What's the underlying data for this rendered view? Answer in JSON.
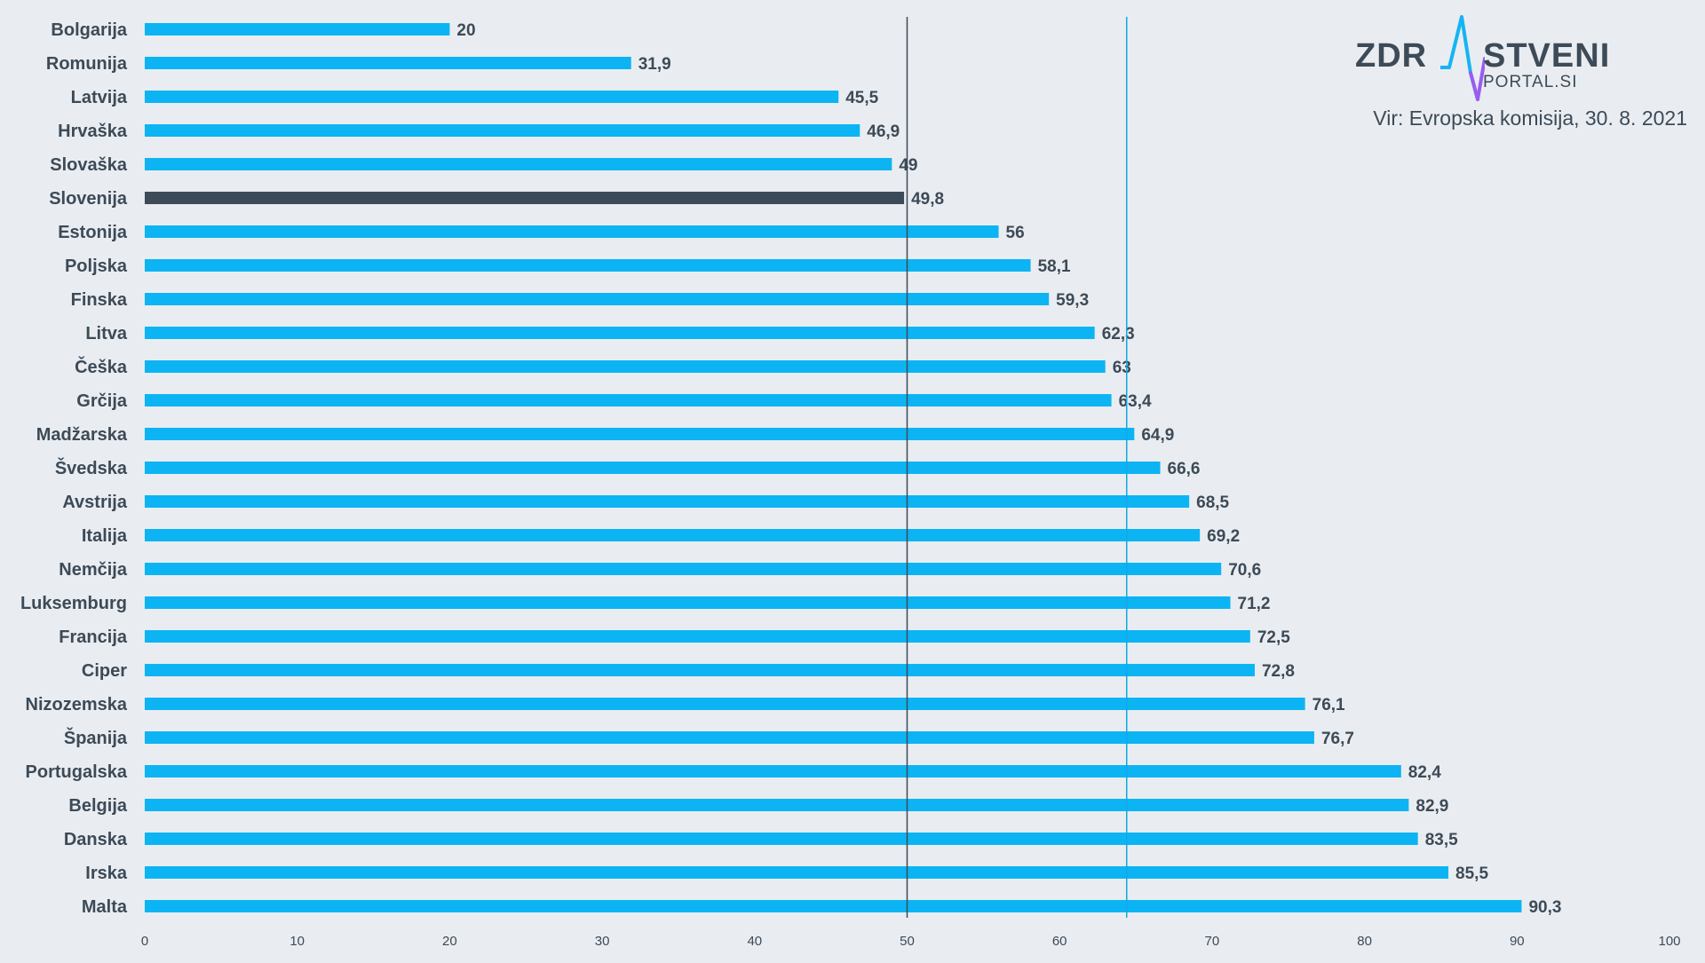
{
  "logo": {
    "part_left": "ZDR",
    "part_right": "STVENI",
    "subtitle": "PORTAL.SI",
    "colors": {
      "text": "#3d4a57",
      "pulse_blue": "#15b4f3",
      "pulse_purple": "#9b5cf0"
    },
    "icon": "heartbeat-pulse-icon"
  },
  "source_note": "Vir: Evropska komisija, 30. 8. 2021",
  "chart_data": {
    "type": "bar",
    "orientation": "horizontal",
    "title": "",
    "xlabel": "",
    "ylabel": "",
    "xlim": [
      0,
      100
    ],
    "x_ticks": [
      "0",
      "10",
      "20",
      "30",
      "40",
      "50",
      "60",
      "70",
      "80",
      "90",
      "100"
    ],
    "x_tick_values": [
      0,
      10,
      20,
      30,
      40,
      50,
      60,
      70,
      80,
      90,
      100
    ],
    "grid": false,
    "reference_lines": [
      {
        "value": 50,
        "color": "#3d4a57"
      },
      {
        "value": 64.4,
        "color": "#0fa9e6"
      }
    ],
    "colors": {
      "default_bar": "#0cb4f3",
      "highlight_bar": "#3d4a57",
      "text": "#3d4a57"
    },
    "highlight_category": "Slovenija",
    "categories": [
      "Bolgarija",
      "Romunija",
      "Latvija",
      "Hrvaška",
      "Slovaška",
      "Slovenija",
      "Estonija",
      "Poljska",
      "Finska",
      "Litva",
      "Češka",
      "Grčija",
      "Madžarska",
      "Švedska",
      "Avstrija",
      "Italija",
      "Nemčija",
      "Luksemburg",
      "Francija",
      "Ciper",
      "Nizozemska",
      "Španija",
      "Portugalska",
      "Belgija",
      "Danska",
      "Irska",
      "Malta"
    ],
    "values": [
      20,
      31.9,
      45.5,
      46.9,
      49,
      49.8,
      56,
      58.1,
      59.3,
      62.3,
      63,
      63.4,
      64.9,
      66.6,
      68.5,
      69.2,
      70.6,
      71.2,
      72.5,
      72.8,
      76.1,
      76.7,
      82.4,
      82.9,
      83.5,
      85.5,
      90.3
    ],
    "value_labels": [
      "20",
      "31,9",
      "45,5",
      "46,9",
      "49",
      "49,8",
      "56",
      "58,1",
      "59,3",
      "62,3",
      "63",
      "63,4",
      "64,9",
      "66,6",
      "68,5",
      "69,2",
      "70,6",
      "71,2",
      "72,5",
      "72,8",
      "76,1",
      "76,7",
      "82,4",
      "82,9",
      "83,5",
      "85,5",
      "90,3"
    ]
  }
}
